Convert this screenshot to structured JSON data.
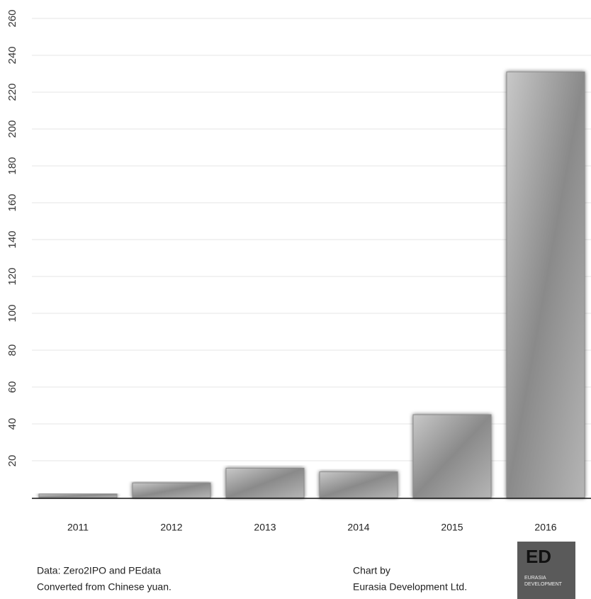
{
  "chart_data": {
    "type": "bar",
    "categories": [
      "2011",
      "2012",
      "2013",
      "2014",
      "2015",
      "2016"
    ],
    "values": [
      2,
      8,
      16,
      14,
      45,
      231
    ],
    "color": "#8c8c8c",
    "ylim": [
      0,
      260
    ],
    "yticks": [
      20,
      40,
      60,
      80,
      100,
      120,
      140,
      160,
      180,
      200,
      220,
      240,
      260
    ],
    "grid": true
  },
  "footer": {
    "source": "Data: Zero2IPO and PEdata",
    "note": "Converted from Chinese yuan.",
    "credit_label": "Chart by",
    "credit": "Eurasia Development Ltd.",
    "logo": {
      "mark": "ED",
      "line1": "EURASIA",
      "line2": "DEVELOPMENT"
    }
  }
}
